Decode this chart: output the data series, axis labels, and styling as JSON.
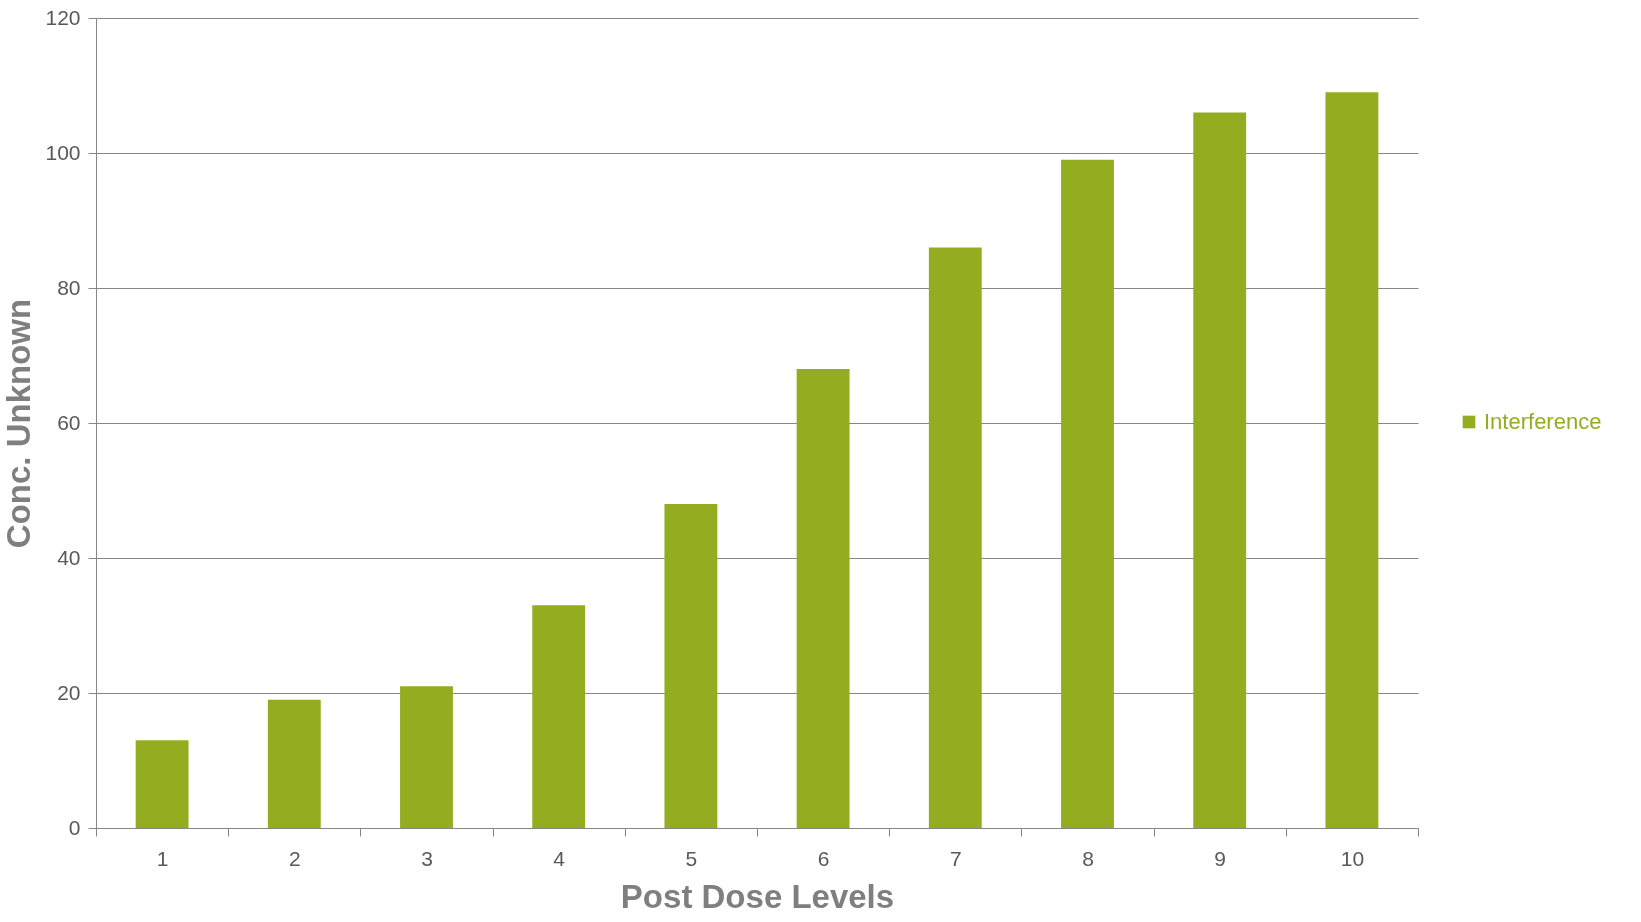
{
  "chart_data": {
    "type": "bar",
    "xlabel": "Post Dose Levels",
    "ylabel": "Conc. Unknown",
    "categories": [
      "1",
      "2",
      "3",
      "4",
      "5",
      "6",
      "7",
      "8",
      "9",
      "10"
    ],
    "series": [
      {
        "name": "Interference",
        "color": "#94ad20",
        "values": [
          13,
          19,
          21,
          33,
          48,
          68,
          86,
          99,
          106,
          109
        ]
      }
    ],
    "ylim": [
      0,
      120
    ],
    "yticks": [
      0,
      20,
      40,
      60,
      80,
      100,
      120
    ],
    "grid": "y",
    "legend": "right"
  }
}
